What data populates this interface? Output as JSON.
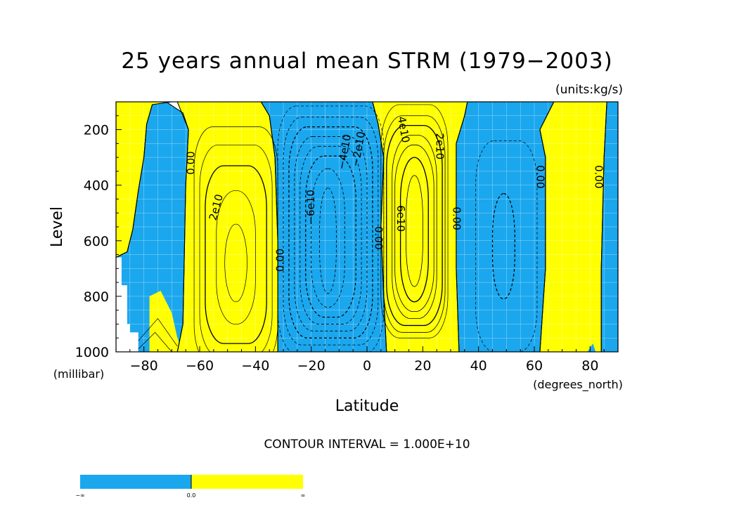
{
  "chart_data": {
    "type": "contour",
    "title": "25 years annual mean STRM (1979−2003)",
    "units_label": "(units:kg/s)",
    "xlabel": "Latitude",
    "x_units": "(degrees_north)",
    "ylabel": "Level",
    "y_units": "(millibar)",
    "xlim": [
      -90,
      90
    ],
    "ylim": [
      1000,
      100
    ],
    "y_inverted": true,
    "x_ticks": [
      -80,
      -60,
      -40,
      -20,
      0,
      20,
      40,
      60,
      80
    ],
    "x_tick_labels": [
      "−80",
      "−60",
      "−40",
      "−20",
      "0",
      "20",
      "40",
      "60",
      "80"
    ],
    "y_ticks": [
      200,
      400,
      600,
      800,
      1000
    ],
    "y_tick_labels": [
      "200",
      "400",
      "600",
      "800",
      "1000"
    ],
    "grid": true,
    "contour_interval_text": "CONTOUR INTERVAL = 1.000E+10",
    "fill_colors": {
      "negative": "#1aa7ee",
      "positive": "#ffff00"
    },
    "colorbar": {
      "labels": [
        "−∞",
        "0.0",
        "∞"
      ]
    },
    "regions": [
      {
        "sign": "positive",
        "lat": [
          -88,
          -82
        ],
        "lev": [
          120,
          660
        ]
      },
      {
        "sign": "negative",
        "lat": [
          -82,
          -66
        ],
        "lev": [
          100,
          1000
        ]
      },
      {
        "sign": "positive",
        "lat": [
          -66,
          -32
        ],
        "lev": [
          100,
          1000
        ]
      },
      {
        "sign": "negative",
        "lat": [
          -32,
          6
        ],
        "lev": [
          100,
          1000
        ]
      },
      {
        "sign": "positive",
        "lat": [
          6,
          32
        ],
        "lev": [
          100,
          1000
        ]
      },
      {
        "sign": "negative",
        "lat": [
          32,
          66
        ],
        "lev": [
          100,
          1000
        ]
      },
      {
        "sign": "positive",
        "lat": [
          64,
          84
        ],
        "lev": [
          100,
          1000
        ]
      },
      {
        "sign": "negative",
        "lat": [
          84,
          90
        ],
        "lev": [
          100,
          1000
        ]
      }
    ],
    "cells": [
      {
        "name": "southern-ferrel-cell",
        "center": [
          -47,
          650
        ],
        "peak": 30000000000.0
      },
      {
        "name": "southern-hadley-cell",
        "center": [
          -15,
          550
        ],
        "peak": -70000000000.0
      },
      {
        "name": "northern-hadley-cell",
        "center": [
          16,
          550
        ],
        "peak": 70000000000.0
      },
      {
        "name": "northern-ferrel-cell",
        "center": [
          50,
          620
        ],
        "peak": -20000000000.0
      }
    ],
    "contour_labels": [
      {
        "text": "0.00",
        "lat": -63,
        "lev": 320,
        "rotate": -90
      },
      {
        "text": "2e10",
        "lat": -54,
        "lev": 480,
        "rotate": -75
      },
      {
        "text": "0.00",
        "lat": -31,
        "lev": 670,
        "rotate": -90
      },
      {
        "text": "−6e10",
        "lat": -20,
        "lev": 480,
        "rotate": -90
      },
      {
        "text": "−4e10",
        "lat": -8,
        "lev": 280,
        "rotate": -80
      },
      {
        "text": "−2e10",
        "lat": -3,
        "lev": 270,
        "rotate": -80
      },
      {
        "text": "0.00",
        "lat": 4,
        "lev": 590,
        "rotate": 90
      },
      {
        "text": "4e10",
        "lat": 13,
        "lev": 200,
        "rotate": 80
      },
      {
        "text": "6e10",
        "lat": 12,
        "lev": 520,
        "rotate": 90
      },
      {
        "text": "2e10",
        "lat": 26,
        "lev": 260,
        "rotate": 90
      },
      {
        "text": "0.00",
        "lat": 32,
        "lev": 520,
        "rotate": 90
      },
      {
        "text": "0.00",
        "lat": 62,
        "lev": 370,
        "rotate": 90
      },
      {
        "text": "0.00",
        "lat": 83,
        "lev": 370,
        "rotate": 90
      }
    ]
  }
}
